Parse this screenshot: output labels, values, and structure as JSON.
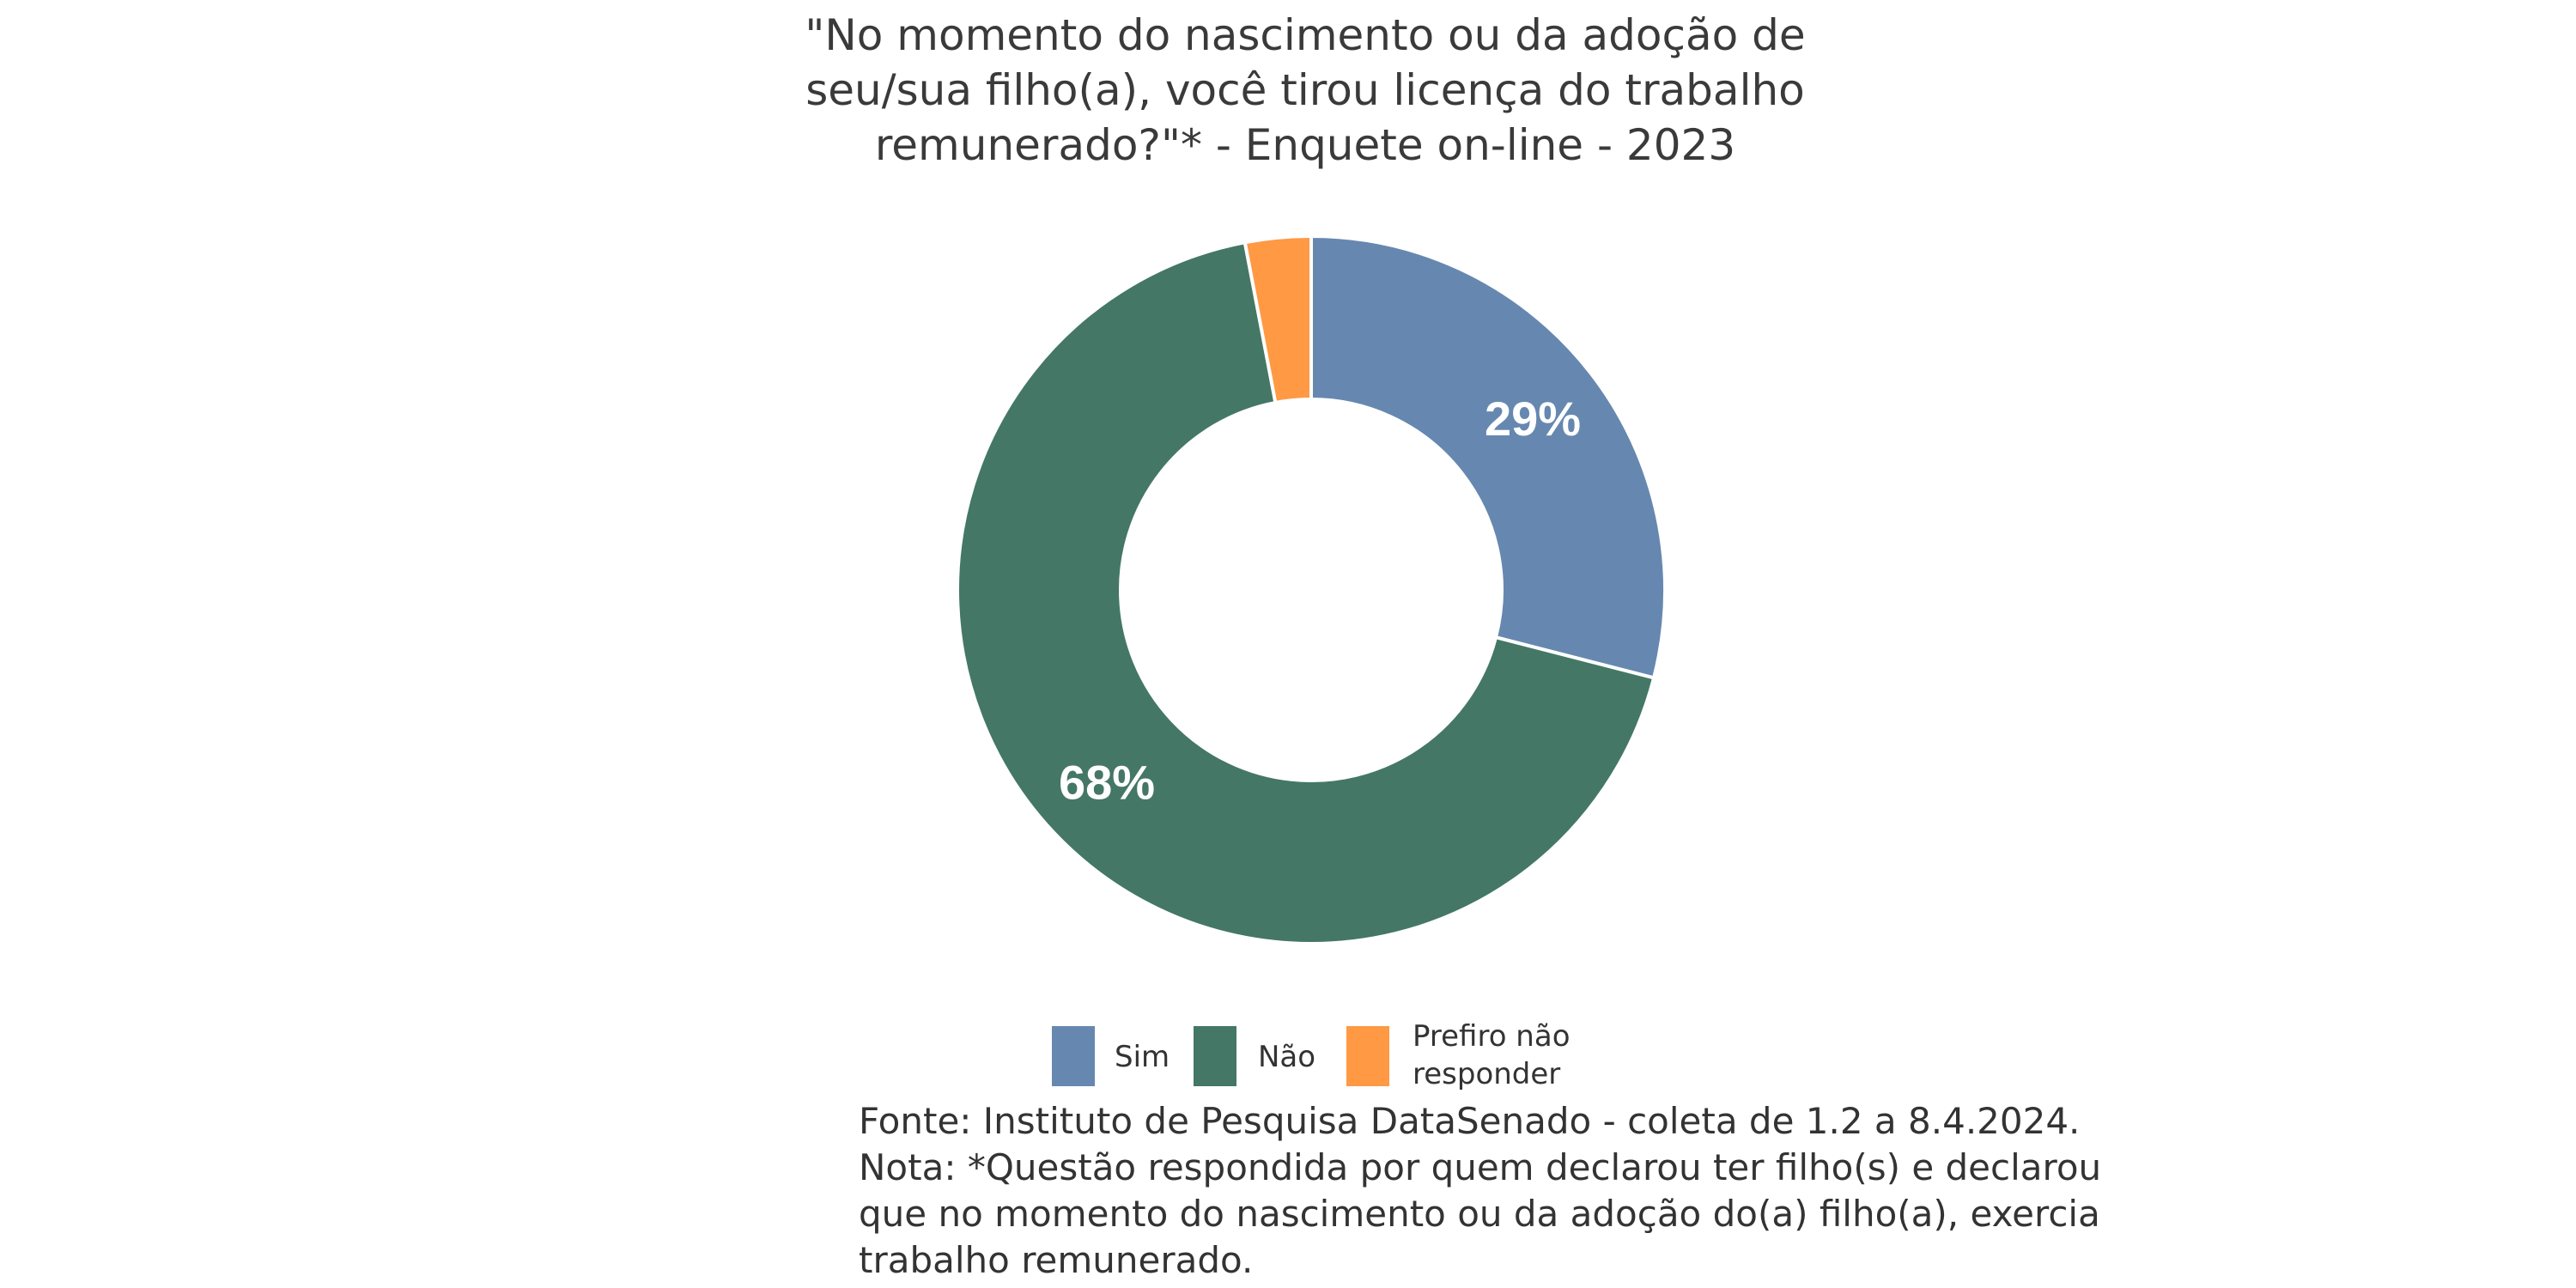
{
  "chart_data": {
    "type": "pie",
    "style": "donut",
    "title_lines": [
      "\"No momento do nascimento ou da adoção de",
      "seu/sua filho(a), você tirou licença do trabalho",
      "remunerado?\"* - Enquete on-line - 2023"
    ],
    "slices": [
      {
        "label": "Sim",
        "value": 29,
        "display": "29%",
        "color": "#6688b0"
      },
      {
        "label": "Não",
        "value": 68,
        "display": "68%",
        "color": "#447766"
      },
      {
        "label_lines": [
          "Prefiro não",
          "responder"
        ],
        "value": 3,
        "display": "",
        "color": "#ff9944"
      }
    ],
    "legend_position": "bottom",
    "note_lines": [
      "Fonte: Instituto de Pesquisa DataSenado - coleta de 1.2 a 8.4.2024.",
      "Nota: *Questão respondida por quem declarou ter filho(s) e declarou",
      "que no momento do nascimento ou da adoção do(a) filho(a), exercia",
      "trabalho remunerado."
    ]
  }
}
